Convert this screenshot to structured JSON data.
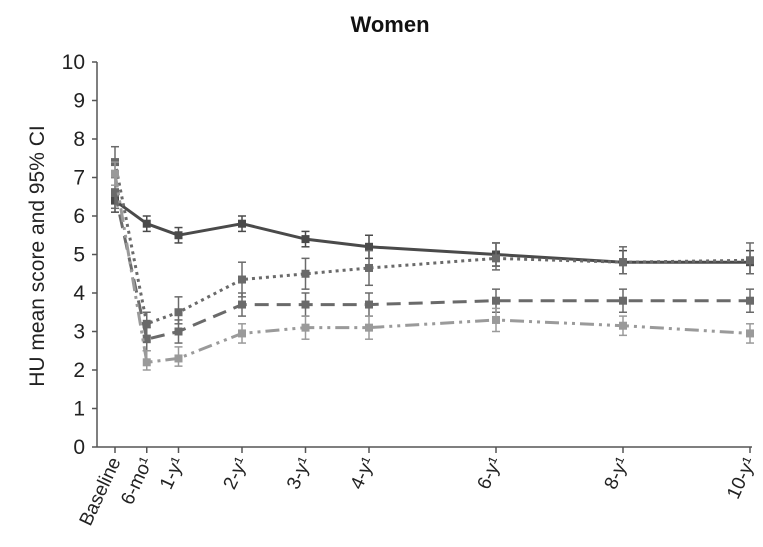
{
  "chart_data": {
    "type": "line",
    "title": "Women",
    "xlabel": "",
    "ylabel": "HU mean score and 95% CI",
    "ylim": [
      0,
      10
    ],
    "yticks": [
      "0",
      "1",
      "2",
      "3",
      "4",
      "5",
      "6",
      "7",
      "8",
      "9",
      "10"
    ],
    "x": [
      0,
      0.5,
      1,
      2,
      3,
      4,
      6,
      8,
      10
    ],
    "x_labels": [
      "Baseline",
      "6-mo¹",
      "1-y¹",
      "2-y¹",
      "3-y¹",
      "4-y¹",
      "6-y¹",
      "8-y¹",
      "10-y¹"
    ],
    "grid": false,
    "legend": "none",
    "series": [
      {
        "style": "solid",
        "color": "#4a4a4a",
        "values": [
          6.4,
          5.8,
          5.5,
          5.8,
          5.4,
          5.2,
          5.0,
          4.8,
          4.8
        ],
        "ci_low": [
          6.1,
          5.6,
          5.3,
          5.6,
          5.2,
          4.9,
          4.7,
          4.5,
          4.5
        ],
        "ci_high": [
          6.7,
          6.0,
          5.7,
          6.0,
          5.6,
          5.5,
          5.3,
          5.1,
          5.1
        ]
      },
      {
        "style": "dotted",
        "color": "#6a6a6a",
        "values": [
          7.4,
          3.2,
          3.5,
          4.35,
          4.5,
          4.65,
          4.9,
          4.8,
          4.85
        ],
        "ci_low": [
          7.0,
          2.9,
          3.2,
          3.9,
          4.1,
          4.2,
          4.6,
          4.5,
          4.5
        ],
        "ci_high": [
          7.8,
          3.5,
          3.9,
          4.8,
          4.9,
          5.1,
          5.3,
          5.2,
          5.3
        ]
      },
      {
        "style": "dashed",
        "color": "#6a6a6a",
        "values": [
          6.6,
          2.8,
          3.0,
          3.7,
          3.7,
          3.7,
          3.8,
          3.8,
          3.8
        ],
        "ci_low": [
          6.2,
          2.5,
          2.7,
          3.4,
          3.4,
          3.4,
          3.5,
          3.5,
          3.5
        ],
        "ci_high": [
          7.0,
          3.1,
          3.3,
          4.0,
          4.0,
          4.0,
          4.1,
          4.1,
          4.1
        ]
      },
      {
        "style": "dash-dot-dot",
        "color": "#9a9a9a",
        "values": [
          7.1,
          2.2,
          2.3,
          2.95,
          3.1,
          3.1,
          3.3,
          3.15,
          2.95
        ],
        "ci_low": [
          6.8,
          2.0,
          2.1,
          2.7,
          2.8,
          2.8,
          3.0,
          2.9,
          2.7
        ],
        "ci_high": [
          7.4,
          2.5,
          2.6,
          3.2,
          3.4,
          3.4,
          3.6,
          3.4,
          3.2
        ]
      }
    ]
  }
}
